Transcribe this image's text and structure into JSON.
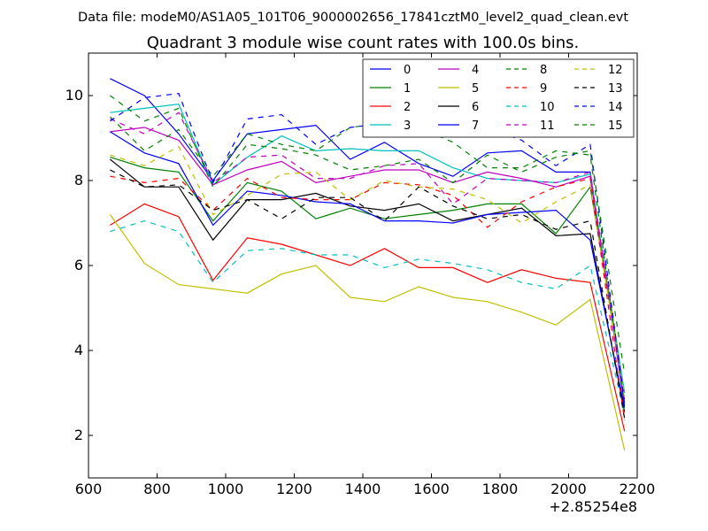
{
  "header": {
    "data_file": "Data file: modeM0/AS1A05_101T06_9000002656_17841cztM0_level2_quad_clean.evt"
  },
  "chart_data": {
    "type": "line",
    "title": "Quadrant 3 module wise count rates with 100.0s bins.",
    "xlabel": "",
    "ylabel": "",
    "x_offset_label": "+2.85254e8",
    "xlim": [
      600,
      2200
    ],
    "ylim": [
      1,
      11
    ],
    "xticks": [
      600,
      800,
      1000,
      1200,
      1400,
      1600,
      1800,
      2000,
      2200
    ],
    "yticks": [
      2,
      4,
      6,
      8,
      10
    ],
    "grid": false,
    "legend_position": "top-right",
    "x": [
      663,
      763,
      863,
      963,
      1063,
      1163,
      1263,
      1363,
      1463,
      1563,
      1663,
      1763,
      1863,
      1963,
      2063,
      2163
    ],
    "series": [
      {
        "name": "0",
        "color": "#0000ff",
        "dash": "solid",
        "values": [
          10.4,
          10.0,
          9.1,
          8.0,
          9.1,
          9.2,
          9.3,
          8.5,
          8.9,
          8.4,
          8.1,
          8.65,
          8.7,
          8.2,
          8.2,
          2.7
        ]
      },
      {
        "name": "1",
        "color": "#008000",
        "dash": "solid",
        "values": [
          8.55,
          8.3,
          8.2,
          7.05,
          7.95,
          7.75,
          7.1,
          7.35,
          7.1,
          7.2,
          7.3,
          7.45,
          7.45,
          6.75,
          7.85,
          3.0
        ]
      },
      {
        "name": "2",
        "color": "#ff0000",
        "dash": "solid",
        "values": [
          6.95,
          7.45,
          7.15,
          5.65,
          6.65,
          6.5,
          6.25,
          6.0,
          6.4,
          5.95,
          5.95,
          5.6,
          5.9,
          5.7,
          5.6,
          2.1
        ]
      },
      {
        "name": "3",
        "color": "#00bfbf",
        "dash": "solid",
        "values": [
          9.6,
          9.7,
          9.8,
          7.9,
          8.55,
          9.05,
          8.7,
          8.75,
          8.7,
          8.7,
          8.3,
          8.05,
          8.0,
          7.95,
          8.15,
          3.0
        ]
      },
      {
        "name": "4",
        "color": "#bf00bf",
        "dash": "solid",
        "values": [
          9.15,
          9.25,
          8.95,
          7.9,
          8.25,
          8.45,
          7.95,
          8.1,
          8.25,
          8.25,
          7.95,
          8.2,
          8.05,
          7.85,
          8.1,
          2.75
        ]
      },
      {
        "name": "5",
        "color": "#bfbf00",
        "dash": "solid",
        "values": [
          7.2,
          6.05,
          5.55,
          5.45,
          5.35,
          5.8,
          6.0,
          5.25,
          5.15,
          5.5,
          5.25,
          5.15,
          4.9,
          4.6,
          5.2,
          1.65
        ]
      },
      {
        "name": "6",
        "color": "#000000",
        "dash": "solid",
        "values": [
          8.5,
          7.85,
          7.85,
          6.6,
          7.55,
          7.55,
          7.7,
          7.4,
          7.3,
          7.45,
          7.05,
          7.2,
          7.35,
          6.7,
          6.75,
          2.55
        ]
      },
      {
        "name": "7",
        "color": "#0000ff",
        "dash": "solid",
        "values": [
          9.15,
          8.65,
          8.4,
          6.95,
          7.75,
          7.65,
          7.5,
          7.45,
          7.05,
          7.05,
          7.0,
          7.2,
          7.25,
          7.3,
          6.6,
          2.65
        ]
      },
      {
        "name": "8",
        "color": "#008000",
        "dash": "dashed",
        "values": [
          9.5,
          8.7,
          9.2,
          8.1,
          9.1,
          8.85,
          8.7,
          9.25,
          9.35,
          9.25,
          8.9,
          8.3,
          8.3,
          8.7,
          8.6,
          2.75
        ]
      },
      {
        "name": "9",
        "color": "#ff0000",
        "dash": "dashed",
        "values": [
          8.1,
          7.95,
          8.05,
          7.3,
          8.05,
          7.6,
          7.55,
          7.55,
          7.95,
          7.9,
          7.65,
          6.9,
          7.5,
          7.85,
          8.05,
          2.35
        ]
      },
      {
        "name": "10",
        "color": "#00bfbf",
        "dash": "dashed",
        "values": [
          6.8,
          7.05,
          6.8,
          5.6,
          6.35,
          6.4,
          6.25,
          6.25,
          5.95,
          6.15,
          6.05,
          5.9,
          5.6,
          5.45,
          6.0,
          2.5
        ]
      },
      {
        "name": "11",
        "color": "#bf00bf",
        "dash": "dashed",
        "values": [
          9.45,
          9.1,
          9.6,
          7.95,
          8.55,
          8.6,
          8.05,
          8.05,
          8.35,
          8.4,
          7.45,
          8.05,
          8.0,
          7.95,
          8.2,
          2.85
        ]
      },
      {
        "name": "12",
        "color": "#bfbf00",
        "dash": "dashed",
        "values": [
          8.6,
          8.35,
          8.8,
          7.2,
          7.65,
          8.15,
          8.2,
          7.55,
          8.0,
          7.85,
          7.8,
          7.55,
          7.0,
          7.5,
          7.9,
          2.9
        ]
      },
      {
        "name": "13",
        "color": "#000000",
        "dash": "dashed",
        "values": [
          8.25,
          7.85,
          7.9,
          7.3,
          7.55,
          7.1,
          7.6,
          7.6,
          7.05,
          7.85,
          7.4,
          7.1,
          7.2,
          6.85,
          7.05,
          2.4
        ]
      },
      {
        "name": "14",
        "color": "#0000ff",
        "dash": "dashed",
        "values": [
          9.4,
          9.95,
          10.05,
          7.95,
          9.45,
          9.55,
          8.85,
          9.25,
          9.35,
          9.75,
          9.45,
          9.25,
          8.95,
          8.35,
          8.85,
          2.75
        ]
      },
      {
        "name": "15",
        "color": "#008000",
        "dash": "dashed",
        "values": [
          10.0,
          9.4,
          9.7,
          7.85,
          8.85,
          8.75,
          8.6,
          8.25,
          8.35,
          8.5,
          7.95,
          8.6,
          8.2,
          8.55,
          8.7,
          3.45
        ]
      }
    ]
  }
}
